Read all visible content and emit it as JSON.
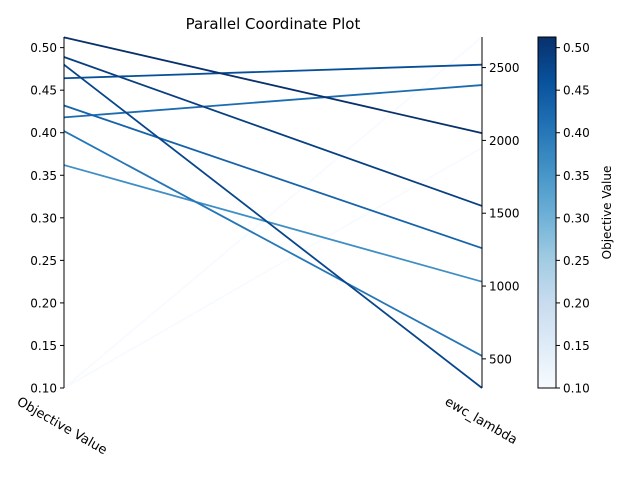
{
  "chart_data": {
    "type": "parallel-coordinates",
    "title": "Parallel Coordinate Plot",
    "axes": [
      {
        "name": "Objective Value",
        "range": [
          0.1,
          0.5125
        ],
        "ticks": [
          "0.10",
          "0.15",
          "0.20",
          "0.25",
          "0.30",
          "0.35",
          "0.40",
          "0.45",
          "0.50"
        ],
        "tick_values": [
          0.1,
          0.15,
          0.2,
          0.25,
          0.3,
          0.35,
          0.4,
          0.45,
          0.5
        ],
        "tick_side": "left"
      },
      {
        "name": "ewc_lambda",
        "range": [
          300,
          2710
        ],
        "ticks": [
          "500",
          "1000",
          "1500",
          "2000",
          "2500"
        ],
        "tick_values": [
          500,
          1000,
          1500,
          2000,
          2500
        ],
        "tick_side": "right"
      }
    ],
    "lines": [
      {
        "objective": 0.1,
        "ewc_lambda": 2710
      },
      {
        "objective": 0.1,
        "ewc_lambda": 1950
      },
      {
        "objective": 0.362,
        "ewc_lambda": 1030
      },
      {
        "objective": 0.402,
        "ewc_lambda": 520
      },
      {
        "objective": 0.418,
        "ewc_lambda": 2380
      },
      {
        "objective": 0.432,
        "ewc_lambda": 1260
      },
      {
        "objective": 0.464,
        "ewc_lambda": 2520
      },
      {
        "objective": 0.48,
        "ewc_lambda": 300
      },
      {
        "objective": 0.489,
        "ewc_lambda": 1550
      },
      {
        "objective": 0.512,
        "ewc_lambda": 2050
      }
    ],
    "colorbar": {
      "label": "Objective Value",
      "range": [
        0.1,
        0.5125
      ],
      "ticks": [
        "0.10",
        "0.15",
        "0.20",
        "0.25",
        "0.30",
        "0.35",
        "0.40",
        "0.45",
        "0.50"
      ],
      "tick_values": [
        0.1,
        0.15,
        0.2,
        0.25,
        0.3,
        0.35,
        0.4,
        0.45,
        0.5
      ],
      "colormap": "Blues",
      "color_stops": [
        "#f7fbff",
        "#deebf7",
        "#c6dbef",
        "#9ecae1",
        "#6baed6",
        "#4292c6",
        "#2171b5",
        "#08519c",
        "#08306b"
      ]
    },
    "grid": false
  }
}
